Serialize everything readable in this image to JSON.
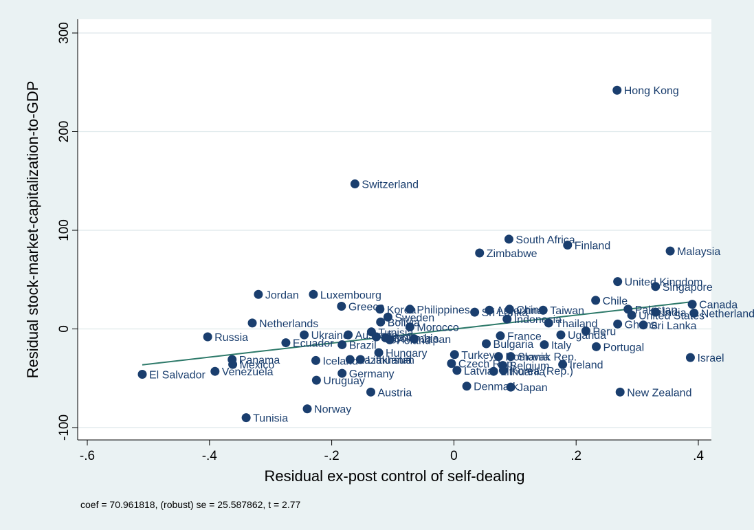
{
  "chart_data": {
    "type": "scatter",
    "title": "",
    "xlabel": "Residual ex-post control of self-dealing",
    "ylabel": "Residual stock-market-capitalization-to-GDP",
    "xlim": [
      -0.6,
      0.4
    ],
    "ylim": [
      -100,
      300
    ],
    "xticks": [
      "-.6",
      "-.4",
      "-.2",
      "0",
      ".2",
      ".4"
    ],
    "xtick_values": [
      -0.6,
      -0.4,
      -0.2,
      0,
      0.2,
      0.4
    ],
    "yticks": [
      "-100",
      "0",
      "100",
      "200",
      "300"
    ],
    "ytick_values": [
      -100,
      0,
      100,
      200,
      300
    ],
    "grid": true,
    "legend": "none",
    "note": "coef = 70.961818, (robust) se = 25.587862, t = 2.77",
    "fit_line": {
      "x": [
        -0.51,
        0.39
      ],
      "y": [
        -36.4,
        27.5
      ]
    },
    "colors": {
      "marker": "#1a3e6e",
      "fit": "#2e7a6a",
      "plot_bg": "#ffffff",
      "outer_bg": "#eaf2f3",
      "grid": "#dde8ea"
    },
    "points": [
      {
        "name": "Hong Kong",
        "x": 0.267,
        "y": 242
      },
      {
        "name": "Switzerland",
        "x": -0.162,
        "y": 147
      },
      {
        "name": "South Africa",
        "x": 0.09,
        "y": 91
      },
      {
        "name": "Finland",
        "x": 0.186,
        "y": 85
      },
      {
        "name": "Zimbabwe",
        "x": 0.042,
        "y": 77
      },
      {
        "name": "Malaysia",
        "x": 0.354,
        "y": 79
      },
      {
        "name": "United Kingdom",
        "x": 0.268,
        "y": 48
      },
      {
        "name": "Singapore",
        "x": 0.33,
        "y": 43
      },
      {
        "name": "Jordan",
        "x": -0.32,
        "y": 35
      },
      {
        "name": "Luxembourg",
        "x": -0.23,
        "y": 35
      },
      {
        "name": "Chile",
        "x": 0.232,
        "y": 29
      },
      {
        "name": "Canada",
        "x": 0.39,
        "y": 25
      },
      {
        "name": "Greece",
        "x": -0.184,
        "y": 23
      },
      {
        "name": "Korea",
        "x": -0.121,
        "y": 20
      },
      {
        "name": "Philippines",
        "x": -0.072,
        "y": 20
      },
      {
        "name": "Argentina",
        "x": 0.058,
        "y": 19
      },
      {
        "name": "China",
        "x": 0.091,
        "y": 20
      },
      {
        "name": "Taiwan",
        "x": 0.146,
        "y": 19
      },
      {
        "name": "Sri Lanka",
        "x": 0.034,
        "y": 17
      },
      {
        "name": "Pakistan",
        "x": 0.285,
        "y": 20
      },
      {
        "name": "India",
        "x": 0.33,
        "y": 17
      },
      {
        "name": "Netherlands",
        "x": 0.393,
        "y": 16
      },
      {
        "name": "Sweden",
        "x": -0.108,
        "y": 12
      },
      {
        "name": "Indonesia",
        "x": 0.087,
        "y": 10
      },
      {
        "name": "United States",
        "x": 0.291,
        "y": 14
      },
      {
        "name": "Netherlands",
        "x": -0.33,
        "y": 6
      },
      {
        "name": "Bolivia",
        "x": -0.12,
        "y": 7
      },
      {
        "name": "Thailand",
        "x": 0.155,
        "y": 6
      },
      {
        "name": "Ghana",
        "x": 0.268,
        "y": 5
      },
      {
        "name": "Sri Lanka",
        "x": 0.31,
        "y": 4
      },
      {
        "name": "Morocco",
        "x": -0.072,
        "y": 2
      },
      {
        "name": "Peru",
        "x": 0.216,
        "y": -2
      },
      {
        "name": "Tunisia",
        "x": -0.135,
        "y": -3
      },
      {
        "name": "Uganda",
        "x": 0.175,
        "y": -6
      },
      {
        "name": "France",
        "x": 0.076,
        "y": -7
      },
      {
        "name": "Russia",
        "x": -0.403,
        "y": -8
      },
      {
        "name": "Ukraine",
        "x": -0.245,
        "y": -6
      },
      {
        "name": "Australia",
        "x": -0.173,
        "y": -6
      },
      {
        "name": "Egypt",
        "x": -0.127,
        "y": -8
      },
      {
        "name": "Colombia",
        "x": -0.112,
        "y": -9
      },
      {
        "name": "Poland",
        "x": -0.105,
        "y": -11
      },
      {
        "name": "Japan",
        "x": -0.065,
        "y": -10
      },
      {
        "name": "Ecuador",
        "x": -0.275,
        "y": -14
      },
      {
        "name": "Brazil",
        "x": -0.183,
        "y": -16
      },
      {
        "name": "Bulgaria",
        "x": 0.053,
        "y": -15
      },
      {
        "name": "Italy",
        "x": 0.148,
        "y": -16
      },
      {
        "name": "Portugal",
        "x": 0.233,
        "y": -18
      },
      {
        "name": "Hungary",
        "x": -0.123,
        "y": -24
      },
      {
        "name": "Turkey",
        "x": 0.001,
        "y": -26
      },
      {
        "name": "Romania",
        "x": 0.073,
        "y": -28
      },
      {
        "name": "Slovak Rep.",
        "x": 0.093,
        "y": -28
      },
      {
        "name": "Israel",
        "x": 0.387,
        "y": -29
      },
      {
        "name": "Panama",
        "x": -0.363,
        "y": -31
      },
      {
        "name": "Iceland",
        "x": -0.226,
        "y": -32
      },
      {
        "name": "Kazakhstan",
        "x": -0.17,
        "y": -31
      },
      {
        "name": "Lithuania",
        "x": -0.153,
        "y": -31
      },
      {
        "name": "Mexico",
        "x": -0.362,
        "y": -36
      },
      {
        "name": "Czech Rep.",
        "x": -0.004,
        "y": -35
      },
      {
        "name": "Belgium",
        "x": 0.08,
        "y": -37
      },
      {
        "name": "Ireland",
        "x": 0.178,
        "y": -36
      },
      {
        "name": "Latvia",
        "x": 0.005,
        "y": -42
      },
      {
        "name": "Lithuania",
        "x": 0.065,
        "y": -43
      },
      {
        "name": "Korea (Rep.)",
        "x": 0.081,
        "y": -42
      },
      {
        "name": "Venezuela",
        "x": -0.391,
        "y": -43
      },
      {
        "name": "Germany",
        "x": -0.183,
        "y": -45
      },
      {
        "name": "El Salvador",
        "x": -0.51,
        "y": -46
      },
      {
        "name": "Uruguay",
        "x": -0.225,
        "y": -52
      },
      {
        "name": "Denmark",
        "x": 0.021,
        "y": -58
      },
      {
        "name": "Japan",
        "x": 0.093,
        "y": -59
      },
      {
        "name": "Austria",
        "x": -0.136,
        "y": -64
      },
      {
        "name": "New Zealand",
        "x": 0.272,
        "y": -64
      },
      {
        "name": "Norway",
        "x": -0.24,
        "y": -81
      },
      {
        "name": "Tunisia",
        "x": -0.34,
        "y": -90
      }
    ]
  }
}
